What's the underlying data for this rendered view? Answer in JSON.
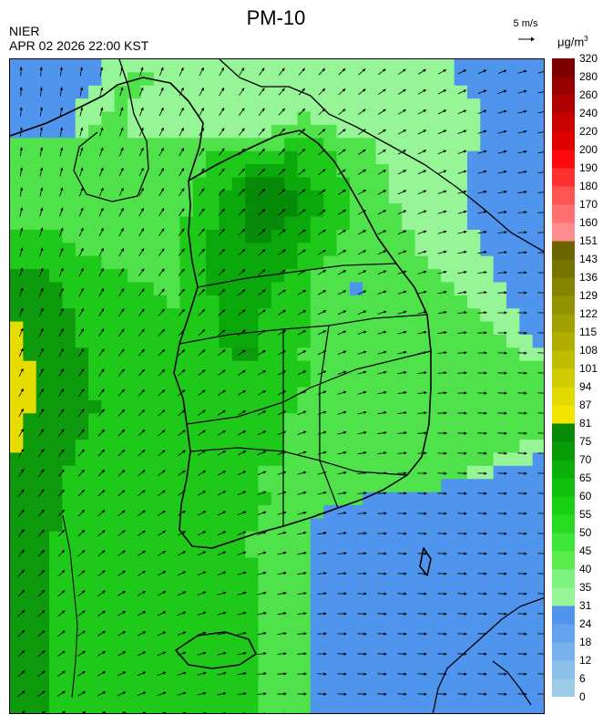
{
  "header": {
    "title": "PM-10",
    "organization": "NIER",
    "datetime": "APR 02 2026 22:00 KST",
    "wind_reference": "5 m/s",
    "unit": "μg/m",
    "unit_exponent": "3"
  },
  "legend": {
    "ticks": [
      "0",
      "6",
      "12",
      "18",
      "24",
      "31",
      "35",
      "40",
      "45",
      "50",
      "55",
      "60",
      "65",
      "70",
      "75",
      "81",
      "87",
      "94",
      "101",
      "108",
      "115",
      "122",
      "129",
      "136",
      "143",
      "151",
      "160",
      "170",
      "180",
      "190",
      "200",
      "220",
      "240",
      "260",
      "280",
      "320"
    ],
    "colors": [
      "#9ccbe8",
      "#8bbfe8",
      "#78b0ee",
      "#64a2ee",
      "#4f95ee",
      "#96f596",
      "#7ef27e",
      "#5ced4c",
      "#3fe63a",
      "#27dc20",
      "#18cf12",
      "#10c00c",
      "#0aaf0a",
      "#089d08",
      "#078a07",
      "#f2e600",
      "#e0da00",
      "#cfcc00",
      "#bfbd00",
      "#b0af00",
      "#a2a000",
      "#939200",
      "#858300",
      "#777300",
      "#6b6400",
      "#ff8c8c",
      "#ff7070",
      "#ff5454",
      "#ff3030",
      "#ff0a0a",
      "#e00000",
      "#c80000",
      "#b00000",
      "#980000",
      "#7c0000"
    ]
  },
  "map_cells": [
    "EEEEEEEFFFFFFFFFFFFFFFFFFFFFFFFFFFEEEEEEE",
    "EEEEEEEFFGGFFFFFFFFFFFFFFFFFFFFFFFEEEEEEE",
    "EEEEEEFFGGFFFFFFFFFFFFFFFFFFFFFFFFFEEEEEE",
    "EEEEEFFFGFFFFFFFFFFFFFFFFFFFFFFFFFFFEEEEE",
    "EEEEEFFGGFFFFFFFFFFFFFGFFFFFFFFFFFFFEEEEE",
    "EEEEEFGGGFFFFFFFFFFFGGGGGFFFFFFFFFFFEEEEE",
    "GGGGGGGGGGGGGGGGGGGGGHHHGGGGFFFFFFFFEEEEE",
    "GGGGGGGGGGGGGGGHHHHHHIHHHGGGFFFFFFFEEEEEE",
    "GGGGGGGGGGGGGGGHHHIIIIHHHGGGGFFFFFFEEEEEE",
    "GGGGGGGGGGGGGGHHHIJJJIIHHHGGGFFFFFFEEEEEE",
    "GGGGGGGGGGGGGGHHIIJJJJIIHHGGGFFFFFFEEEEEE",
    "GGGGGGGGGGGGGGHHIIJJJJIIHHGGGGFFFFFEEEEEE",
    "GGGGGGGGGGGGGHHHIIJJJIIHHHGGGGFFFFFEEEEEE",
    "HHHHGGGGGGGGGHHIIIJJIIIHHGGGGGGFFFFFEEEEE",
    "HHHHHGGGGGGGGHHIIIIIIIHHHGGGGGGFFFFFEEEEE",
    "HHHHHHHGGGGGGHHIIIIIIIHHGGGGGGGGFFFFFEEEE",
    "OOOHHHHHHGGGGHHIIIIIIHHGGGGGGGGGGFFFFEEEE",
    "OOOOHHHHHHHGGHHIIIIIHHHGGGEGGGGGGGFFFFEEE",
    "OOOOHHHHHHHHGHHHIIIIHHHGGGGGGGGGGGGFFFEEE",
    "OOOOOHHHHHHHHHHHIIIHHHHGGGGGGGGGGGGGFFFEE",
    "POOOOHHHHHHHHHHHIIIHHHHGGGGGGGGGGGGGGFFEE",
    "POOOOHHHHHHHHHHHIIIHHHHGGGGGGGGGGGGGGGFFE",
    "POOOOOHHHHHHHHHHHOOHHHGGGGGGGGGGGGGGGGGFF",
    "PPOOOOHHHHHHHHHHHHHHHHHGGGGGGGGGGGGGGGGGG",
    "PPOOOOHHHHHHHHHHHHHHHHHGGGGGGGGGGGGGGGGGG",
    "PPOOOOHHHHHHHHHHHHHHHHGGGGGGGGGGGGGGGGGGG",
    "PPOOOOOHHHHHHHHHHHHHHHGGGGGGGGGGGGGGGGGGG",
    "POOOOOHHHHHHHHHHHHHHHGGGGGGGGGGGGGGGGGGGG",
    "POOOOOHHHHHHHHHHHHHHHGGGGGGGGGGGGGGGGGGGG",
    "POOOOHHHHHHHHHHHHHHHHGGGGGGGGGGGGGGGGGGFF",
    "OOOOOHHHHHHHHHHHHHHHHGGGGGGGGGGGGGGGGFFFE",
    "OOOOHHHHHHHHHHHHHHHGGGGGGGGGGGGGGGGFFEEEE",
    "OOOOHHHHHHHHHHHHHHHGGGGGGGGGGGGGGEEEEEEEE",
    "OOOOHHHHHHHHHHHHHHHHGGGGGGGEEEEEEEEEEEEEE",
    "OOOOHHHHHHHHHHHHHHHGGGGGEEEEEEEEEEEEEEEEE",
    "OOOOHHHHHHHHHHHHHHHGGGGEEEEEEEEEEEEEEEEEE",
    "OOOHHHHHHHHHHHHHHHGGGGGEEEEEEEEEEEEEEEEEE",
    "OOOHHHHHHHHHHHHHHHGGGGGEEEEEEEEEEEEEEEEEE",
    "OOOHHHHHHHHHHHHHHHHGGGGEEEEEEEEEEEEEEEEEE",
    "OOOHHHHHHHHHHHHHHHHGGGGEEEEEEEEEEEEEEEEEE",
    "OOOHHHHHHHHHHHHHHHHGGGGEEEEEEEEEEEEEEEEEE",
    "OOOHHHHHHHHHHHHHHHHGGGGEEEEEEEEEEEEEEEEEE",
    "OOOHHHHHHHHHHHHHHHHGGGGEEEEEEEEEEEEEEEEEE",
    "OOOHHHHHHHHHHHHHHHHGGGGEEEEEEEEEEEEEEEEEE",
    "OOOHHHHHHHHHHHHHHHHGGGGEEEEEEEEEEEEEEEEEE",
    "OOOHHHHHHHHHHHHHHHHGGGGEEEEEEEEEEEEEEEEEE",
    "OOOHHHHHHHHHHHHHHHHGGGGEEEEEEEEEEEEEEEEEE",
    "OOOHHHHHHHHHHHHHHHHGGGGEEEEEEEEEEEEEEEEEE",
    "OOOHHHHHHHHHHHHHHHHGGGGEEEEEEEEEEEEEEEEEE",
    "OOOHHHHHHHHHHHHHHHHGGGGEEEEEEEEEEEEEEEEEE"
  ],
  "map_palette": {
    "E": "#4f95ee",
    "F": "#96f596",
    "G": "#4fe24a",
    "H": "#1fc91a",
    "I": "#0aa80a",
    "J": "#078a07",
    "O": "#0d9a0d",
    "P": "#e6dc00"
  }
}
